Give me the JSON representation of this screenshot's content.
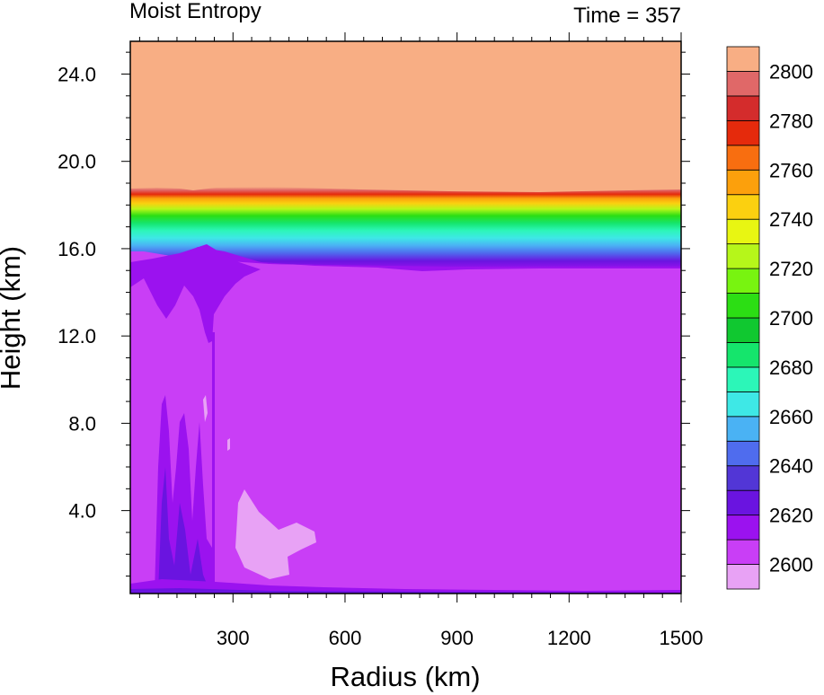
{
  "chart_data": {
    "type": "heatmap",
    "title_left": "Moist Entropy",
    "title_right": "Time = 357",
    "xlabel": "Radius (km)",
    "ylabel": "Height (km)",
    "x_ticks": [
      "300",
      "600",
      "900",
      "1200",
      "1500"
    ],
    "x_tick_values": [
      300,
      600,
      900,
      1200,
      1500
    ],
    "y_ticks": [
      "4.0",
      "8.0",
      "12.0",
      "16.0",
      "20.0",
      "24.0"
    ],
    "y_tick_values": [
      4,
      8,
      12,
      16,
      20,
      24
    ],
    "xlim": [
      25,
      1500
    ],
    "ylim": [
      0.2,
      25.5
    ],
    "colorbar": {
      "labels": [
        "2600",
        "2620",
        "2640",
        "2660",
        "2680",
        "2700",
        "2720",
        "2740",
        "2760",
        "2780",
        "2800"
      ],
      "colors": [
        "#e8a2f5",
        "#c93ef6",
        "#9b12ef",
        "#6a14e0",
        "#5236d6",
        "#4f6cee",
        "#4ab2f4",
        "#3ee8e6",
        "#2cf6b8",
        "#15e56c",
        "#10c830",
        "#2cde14",
        "#78f410",
        "#b6f61a",
        "#e8f612",
        "#fbd010",
        "#fca00c",
        "#f86e10",
        "#e52a0c",
        "#d42c2c",
        "#e06868",
        "#f8ae84"
      ]
    },
    "fields": {
      "stratosphere_min": 2810,
      "troposphere_typical": 2610,
      "surface_min": 2600,
      "tropopause_height_km": [
        16.5,
        18.8
      ]
    }
  }
}
